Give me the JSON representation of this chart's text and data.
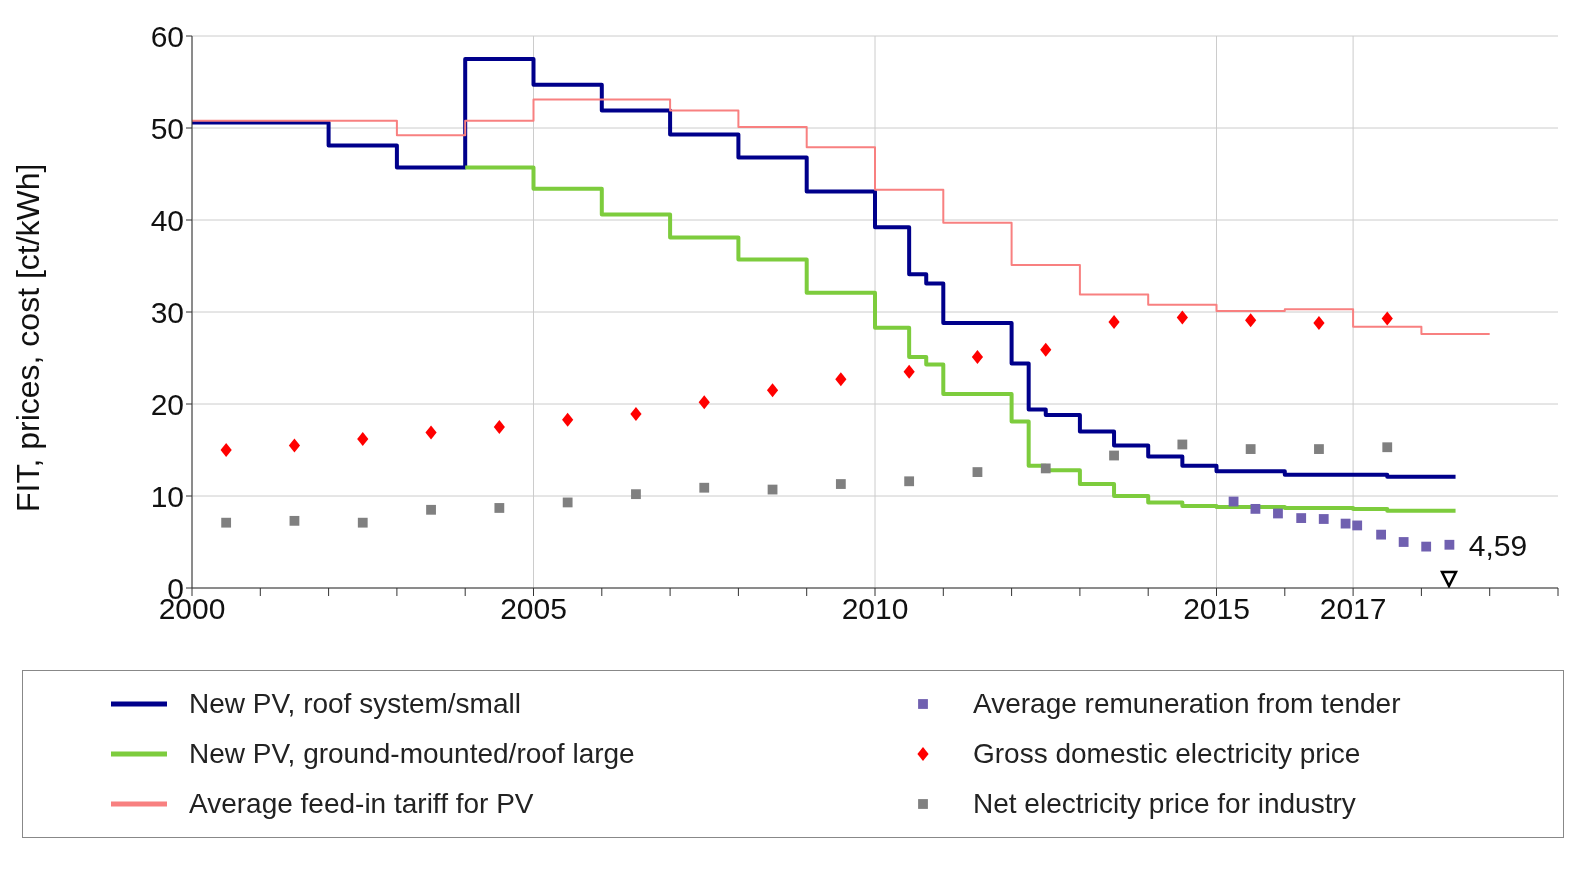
{
  "chart_data": {
    "type": "step",
    "ylabel": "FIT, prices, cost [ct/kWh]",
    "xlim": [
      2000,
      2020
    ],
    "ylim": [
      0,
      60
    ],
    "xticks": [
      2000,
      {
        "value": 2001,
        "label": null
      },
      {
        "value": 2002,
        "label": null
      },
      {
        "value": 2003,
        "label": null
      },
      {
        "value": 2004,
        "label": null
      },
      2005,
      {
        "value": 2006,
        "label": null
      },
      {
        "value": 2007,
        "label": null
      },
      {
        "value": 2008,
        "label": null
      },
      {
        "value": 2009,
        "label": null
      },
      2010,
      {
        "value": 2011,
        "label": null
      },
      {
        "value": 2012,
        "label": null
      },
      {
        "value": 2013,
        "label": null
      },
      {
        "value": 2014,
        "label": null
      },
      2015,
      {
        "value": 2016,
        "label": null
      },
      2017,
      {
        "value": 2018,
        "label": null
      },
      {
        "value": 2019,
        "label": null
      },
      {
        "value": 2020,
        "label": null
      }
    ],
    "yticks": [
      0,
      10,
      20,
      30,
      40,
      50,
      60
    ],
    "grid": true,
    "legend": "bottom",
    "annotations": [
      {
        "text": "4,59",
        "x": 2018.4,
        "y": 4.59
      }
    ],
    "series": [
      {
        "name": "New PV, roof system/small",
        "color": "#00008b",
        "x": [
          2000,
          2002,
          2003,
          2004,
          2005,
          2006,
          2007,
          2008,
          2009,
          2010,
          2010.5,
          2010.75,
          2011,
          2012,
          2012.25,
          2012.5,
          2013,
          2013.5,
          2014,
          2014.5,
          2015,
          2016,
          2017,
          2017.5,
          2018.5
        ],
        "values": [
          50.6,
          48.1,
          45.7,
          57.5,
          54.7,
          51.9,
          49.3,
          46.8,
          43.1,
          39.2,
          34.1,
          33.1,
          28.8,
          24.4,
          19.4,
          18.8,
          17,
          15.5,
          14.3,
          13.3,
          12.7,
          12.3,
          12.3,
          12.1,
          12.1
        ]
      },
      {
        "name": "New PV, ground-mounted/roof large",
        "color": "#7dcc3d",
        "x": [
          2004,
          2005,
          2006,
          2007,
          2008,
          2009,
          2010,
          2010.5,
          2010.75,
          2011,
          2012,
          2012.25,
          2012.5,
          2013,
          2013.5,
          2014,
          2014.5,
          2015,
          2016,
          2017,
          2017.5,
          2018.5
        ],
        "values": [
          45.7,
          43.4,
          40.6,
          38.1,
          35.7,
          32.1,
          28.3,
          25.1,
          24.3,
          21.1,
          18.1,
          13.3,
          12.8,
          11.3,
          10,
          9.3,
          8.9,
          8.8,
          8.7,
          8.6,
          8.4,
          8.4
        ]
      },
      {
        "name": "Average feed-in tariff for PV",
        "color": "#f88080",
        "x": [
          2000,
          2003,
          2004,
          2005,
          2007,
          2008,
          2009,
          2010,
          2011,
          2012,
          2013,
          2014,
          2015,
          2016,
          2017,
          2018,
          2019
        ],
        "values": [
          50.8,
          49.2,
          50.8,
          53.1,
          51.9,
          50.1,
          47.9,
          43.3,
          39.7,
          35.1,
          31.9,
          30.8,
          30.1,
          30.3,
          28.4,
          27.6,
          27.6
        ]
      },
      {
        "name": "Average remuneration from tender",
        "color": "#7060b0",
        "type": "scatter",
        "marker": "square",
        "x": [
          2015.25,
          2015.57,
          2015.9,
          2016.24,
          2016.57,
          2016.89,
          2017.06,
          2017.41,
          2017.74,
          2018.07,
          2018.41
        ],
        "values": [
          9.4,
          8.6,
          8.1,
          7.6,
          7.5,
          7,
          6.8,
          5.8,
          5,
          4.5,
          4.7
        ]
      },
      {
        "name": "Gross domestic electricity price",
        "color": "#ff0000",
        "type": "scatter",
        "marker": "diamond",
        "x": [
          2000.5,
          2001.5,
          2002.5,
          2003.5,
          2004.5,
          2005.5,
          2006.5,
          2007.5,
          2008.5,
          2009.5,
          2010.5,
          2011.5,
          2012.5,
          2013.5,
          2014.5,
          2015.5,
          2016.5,
          2017.5
        ],
        "values": [
          15,
          15.5,
          16.2,
          16.9,
          17.5,
          18.3,
          18.9,
          20.2,
          21.5,
          22.7,
          23.5,
          25.1,
          25.9,
          28.9,
          29.4,
          29.1,
          28.8,
          29.3
        ]
      },
      {
        "name": "Net electricity price for industry",
        "color": "#808080",
        "type": "scatter",
        "marker": "square",
        "x": [
          2000.5,
          2001.5,
          2002.5,
          2003.5,
          2004.5,
          2005.5,
          2006.5,
          2007.5,
          2008.5,
          2009.5,
          2010.5,
          2011.5,
          2012.5,
          2013.5,
          2014.5,
          2015.5,
          2016.5,
          2017.5
        ],
        "values": [
          7.1,
          7.3,
          7.1,
          8.5,
          8.7,
          9.3,
          10.2,
          10.9,
          10.7,
          11.3,
          11.6,
          12.6,
          13,
          14.4,
          15.6,
          15.1,
          15.1,
          15.3
        ]
      }
    ]
  }
}
